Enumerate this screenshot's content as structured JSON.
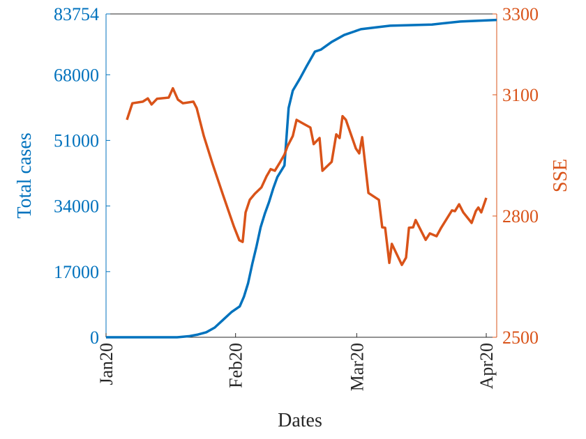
{
  "chart_data": {
    "type": "line",
    "xlabel": "Dates",
    "ylabel": "Total cases",
    "y2label": "SSE",
    "xlim": [
      0,
      93.5
    ],
    "xticks": [
      {
        "value": 0,
        "label": "Jan20"
      },
      {
        "value": 31,
        "label": "Feb20"
      },
      {
        "value": 60,
        "label": "Mar20"
      },
      {
        "value": 91,
        "label": "Apr20"
      }
    ],
    "ylim": [
      0,
      83754
    ],
    "yticks": [
      0,
      17000,
      34000,
      51000,
      68000,
      83754
    ],
    "y2lim": [
      2500,
      3300
    ],
    "y2ticks": [
      2500,
      2800,
      3100,
      3300
    ],
    "ycolor": "#0072bd",
    "y2color": "#d95319",
    "series": [
      {
        "color": "#0072bd",
        "axis": "y",
        "x": [
          0,
          10,
          17,
          20,
          22,
          24,
          26,
          28,
          30,
          32,
          33,
          34,
          35,
          36,
          37,
          38,
          39,
          40,
          41,
          42.7,
          43.7,
          44.7,
          46.4,
          48,
          50,
          51.4,
          54,
          57,
          61,
          64.8,
          68,
          78,
          84.8,
          93.5
        ],
        "values": [
          0,
          0,
          0,
          300,
          700,
          1300,
          2500,
          4500,
          6500,
          8000,
          10500,
          14000,
          19000,
          23500,
          28500,
          32000,
          35000,
          38500,
          41500,
          44500,
          59400,
          63900,
          67000,
          70200,
          74000,
          74500,
          76500,
          78300,
          79800,
          80300,
          80700,
          81000,
          81800,
          82200
        ]
      },
      {
        "color": "#d95319",
        "axis": "y2",
        "x": [
          5,
          6.3,
          8.8,
          10,
          10.9,
          12.2,
          15,
          16,
          17.2,
          18.4,
          20.9,
          21.7,
          23.4,
          25.5,
          28,
          30.6,
          31.9,
          32.7,
          33.4,
          34.4,
          35.6,
          37.2,
          38.4,
          39.4,
          40.4,
          41.7,
          42.7,
          43.4,
          44.7,
          45.6,
          47.3,
          48.9,
          49.7,
          51.1,
          51.8,
          54,
          55.1,
          55.9,
          56.6,
          57.4,
          59.8,
          60.6,
          61.3,
          62.1,
          62.8,
          65.3,
          66.1,
          66.8,
          67.8,
          68.4,
          70.8,
          71.8,
          72.5,
          73.5,
          74.1,
          76.5,
          77.5,
          79.1,
          80.1,
          82.8,
          83.5,
          84.5,
          85.5,
          87.5,
          88.5,
          89.1,
          89.8,
          91
        ],
        "values": [
          3038,
          3079,
          3083,
          3091,
          3076,
          3090,
          3093,
          3116,
          3088,
          3079,
          3083,
          3067,
          2998,
          2929,
          2852,
          2774,
          2740,
          2736,
          2809,
          2840,
          2855,
          2871,
          2898,
          2916,
          2912,
          2934,
          2952,
          2972,
          2998,
          3038,
          3028,
          3019,
          2978,
          2993,
          2912,
          2934,
          3002,
          2993,
          3047,
          3038,
          2967,
          2955,
          2995,
          2921,
          2857,
          2840,
          2772,
          2771,
          2684,
          2731,
          2679,
          2697,
          2771,
          2772,
          2790,
          2741,
          2757,
          2750,
          2769,
          2814,
          2812,
          2829,
          2809,
          2783,
          2812,
          2821,
          2809,
          2845
        ]
      }
    ]
  }
}
